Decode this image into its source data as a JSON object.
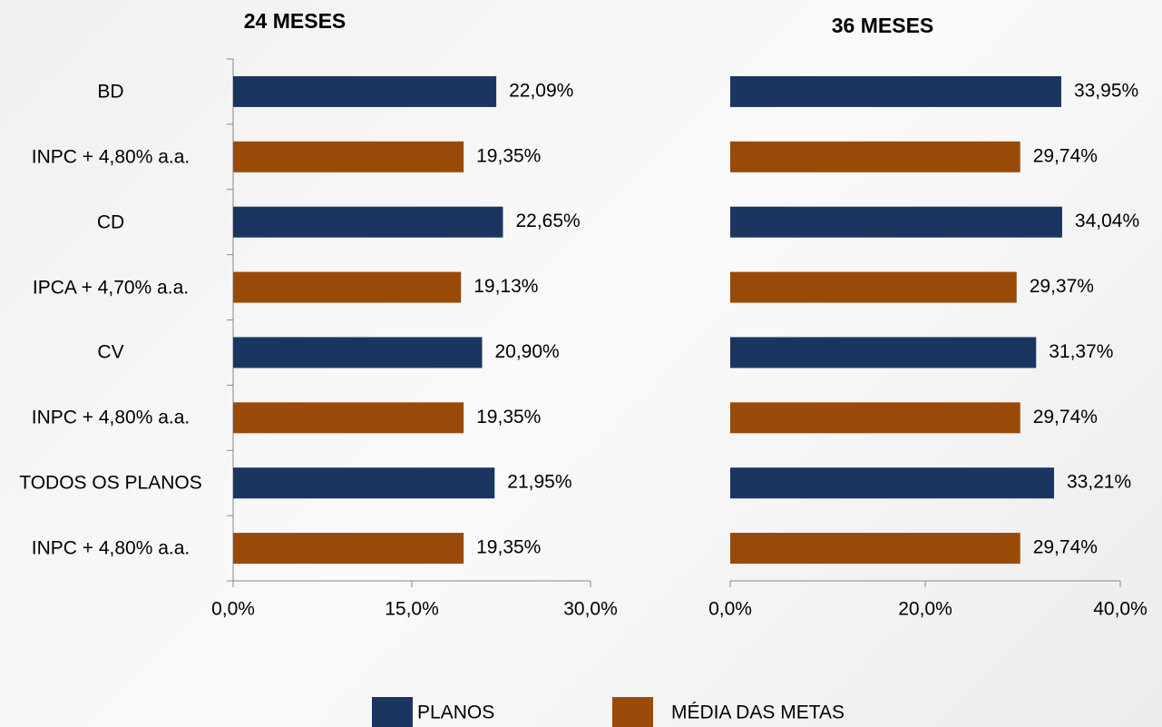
{
  "chart_data": [
    {
      "type": "bar",
      "orientation": "horizontal",
      "title": "24 MESES",
      "categories": [
        "BD",
        "INPC + 4,80% a.a.",
        "CD",
        "IPCA + 4,70% a.a.",
        "CV",
        "INPC + 4,80% a.a.",
        "TODOS OS PLANOS",
        "INPC + 4,80% a.a."
      ],
      "series": [
        {
          "name": "PLANOS",
          "color": "#1a3660",
          "values": [
            22.09,
            null,
            22.65,
            null,
            20.9,
            null,
            21.95,
            null
          ],
          "value_labels": [
            "22,09%",
            null,
            "22,65%",
            null,
            "20,90%",
            null,
            "21,95%",
            null
          ]
        },
        {
          "name": "MÉDIA DAS METAS",
          "color": "#9a4a08",
          "values": [
            null,
            19.35,
            null,
            19.13,
            null,
            19.35,
            null,
            19.35
          ],
          "value_labels": [
            null,
            "19,35%",
            null,
            "19,13%",
            null,
            "19,35%",
            null,
            "19,35%"
          ]
        }
      ],
      "xlim": [
        0,
        30
      ],
      "xticks": [
        {
          "value": 0,
          "label": "0,0%"
        },
        {
          "value": 15,
          "label": "15,0%"
        },
        {
          "value": 30,
          "label": "30,0%"
        }
      ],
      "category_axis_line": true,
      "legend": "bottom"
    },
    {
      "type": "bar",
      "orientation": "horizontal",
      "title": "36 MESES",
      "categories": [
        null,
        null,
        null,
        null,
        null,
        null,
        null,
        null
      ],
      "series": [
        {
          "name": "PLANOS",
          "color": "#1a3660",
          "values": [
            33.95,
            null,
            34.04,
            null,
            31.37,
            null,
            33.21,
            null
          ],
          "value_labels": [
            "33,95%",
            null,
            "34,04%",
            null,
            "31,37%",
            null,
            "33,21%",
            null
          ]
        },
        {
          "name": "MÉDIA DAS METAS",
          "color": "#9a4a08",
          "values": [
            null,
            29.74,
            null,
            29.37,
            null,
            29.74,
            null,
            29.74
          ],
          "value_labels": [
            null,
            "29,74%",
            null,
            "29,37%",
            null,
            "29,74%",
            null,
            "29,74%"
          ]
        }
      ],
      "xlim": [
        0,
        40
      ],
      "xticks": [
        {
          "value": 0,
          "label": "0,0%"
        },
        {
          "value": 20,
          "label": "20,0%"
        },
        {
          "value": 40,
          "label": "40,0%"
        }
      ],
      "category_axis_line": false
    }
  ]
}
